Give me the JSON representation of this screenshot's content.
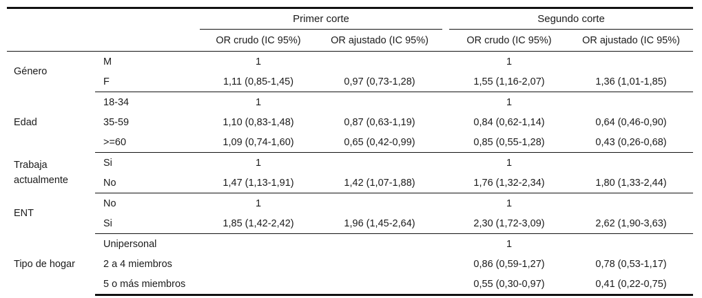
{
  "header": {
    "groups": [
      "Primer corte",
      "Segundo corte"
    ],
    "columns": [
      "OR crudo (IC 95%)",
      "OR ajustado (IC 95%)",
      "OR crudo (IC 95%)",
      "OR ajustado (IC 95%)"
    ]
  },
  "groups": [
    {
      "label": "Género",
      "rows": [
        {
          "cat": "M",
          "cells": [
            "1",
            "",
            "1",
            ""
          ]
        },
        {
          "cat": "F",
          "cells": [
            "1,11 (0,85-1,45)",
            "0,97 (0,73-1,28)",
            "1,55 (1,16-2,07)",
            "1,36 (1,01-1,85)"
          ]
        }
      ]
    },
    {
      "label": "Edad",
      "rows": [
        {
          "cat": "18-34",
          "cells": [
            "1",
            "",
            "1",
            ""
          ]
        },
        {
          "cat": "35-59",
          "cells": [
            "1,10 (0,83-1,48)",
            "0,87 (0,63-1,19)",
            "0,84 (0,62-1,14)",
            "0,64 (0,46-0,90)"
          ]
        },
        {
          "cat": ">=60",
          "cells": [
            "1,09 (0,74-1,60)",
            "0,65 (0,42-0,99)",
            "0,85 (0,55-1,28)",
            "0,43 (0,26-0,68)"
          ]
        }
      ]
    },
    {
      "label": "Trabaja actualmente",
      "rows": [
        {
          "cat": "Si",
          "cells": [
            "1",
            "",
            "1",
            ""
          ]
        },
        {
          "cat": "No",
          "cells": [
            "1,47 (1,13-1,91)",
            "1,42 (1,07-1,88)",
            "1,76 (1,32-2,34)",
            "1,80 (1,33-2,44)"
          ]
        }
      ]
    },
    {
      "label": "ENT",
      "rows": [
        {
          "cat": "No",
          "cells": [
            "1",
            "",
            "1",
            ""
          ]
        },
        {
          "cat": "Si",
          "cells": [
            "1,85 (1,42-2,42)",
            "1,96 (1,45-2,64)",
            "2,30 (1,72-3,09)",
            "2,62 (1,90-3,63)"
          ]
        }
      ]
    },
    {
      "label": "Tipo de hogar",
      "rows": [
        {
          "cat": "Unipersonal",
          "cells": [
            "",
            "",
            "1",
            ""
          ]
        },
        {
          "cat": "2 a 4 miembros",
          "cells": [
            "",
            "",
            "0,86 (0,59-1,27)",
            "0,78 (0,53-1,17)"
          ]
        },
        {
          "cat": "5 o más miembros",
          "cells": [
            "",
            "",
            "0,55 (0,30-0,97)",
            "0,41 (0,22-0,75)"
          ]
        }
      ]
    }
  ]
}
